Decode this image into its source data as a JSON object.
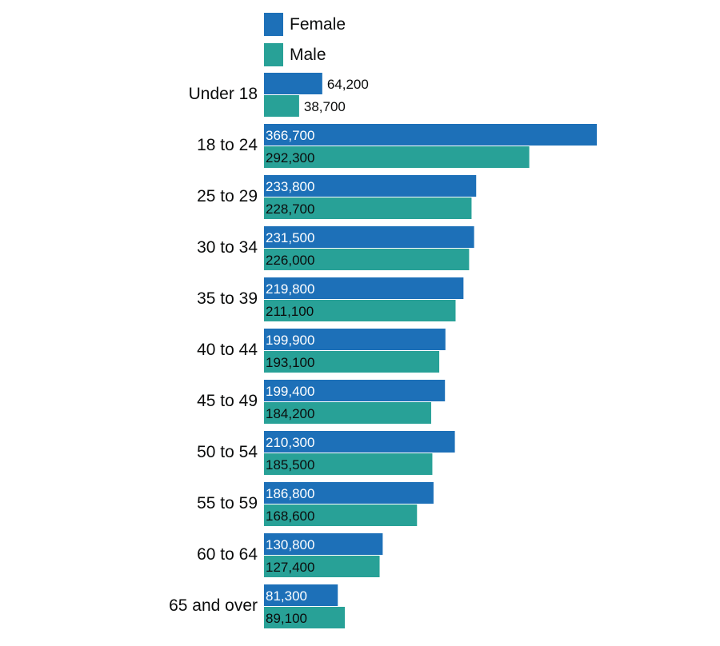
{
  "chart_data": {
    "type": "bar",
    "orientation": "horizontal",
    "categories": [
      "Under 18",
      "18 to 24",
      "25 to 29",
      "30 to 34",
      "35 to 39",
      "40 to 44",
      "45 to 49",
      "50 to 54",
      "55 to 59",
      "60 to 64",
      "65 and over"
    ],
    "series": [
      {
        "name": "Female",
        "color": "#1d70b8",
        "values": [
          64200,
          366700,
          233800,
          231500,
          219800,
          199900,
          199400,
          210300,
          186800,
          130800,
          81300
        ],
        "labels": [
          "64,200",
          "366,700",
          "233,800",
          "231,500",
          "219,800",
          "199,900",
          "199,400",
          "210,300",
          "186,800",
          "130,800",
          "81,300"
        ]
      },
      {
        "name": "Male",
        "color": "#28a197",
        "values": [
          38700,
          292300,
          228700,
          226000,
          211100,
          193100,
          184200,
          185500,
          168600,
          127400,
          89100
        ],
        "labels": [
          "38,700",
          "292,300",
          "228,700",
          "226,000",
          "211,100",
          "193,100",
          "184,200",
          "185,500",
          "168,600",
          "127,400",
          "89,100"
        ]
      }
    ],
    "legend": "top-left",
    "grid": false,
    "xlim": [
      0,
      366700
    ]
  }
}
